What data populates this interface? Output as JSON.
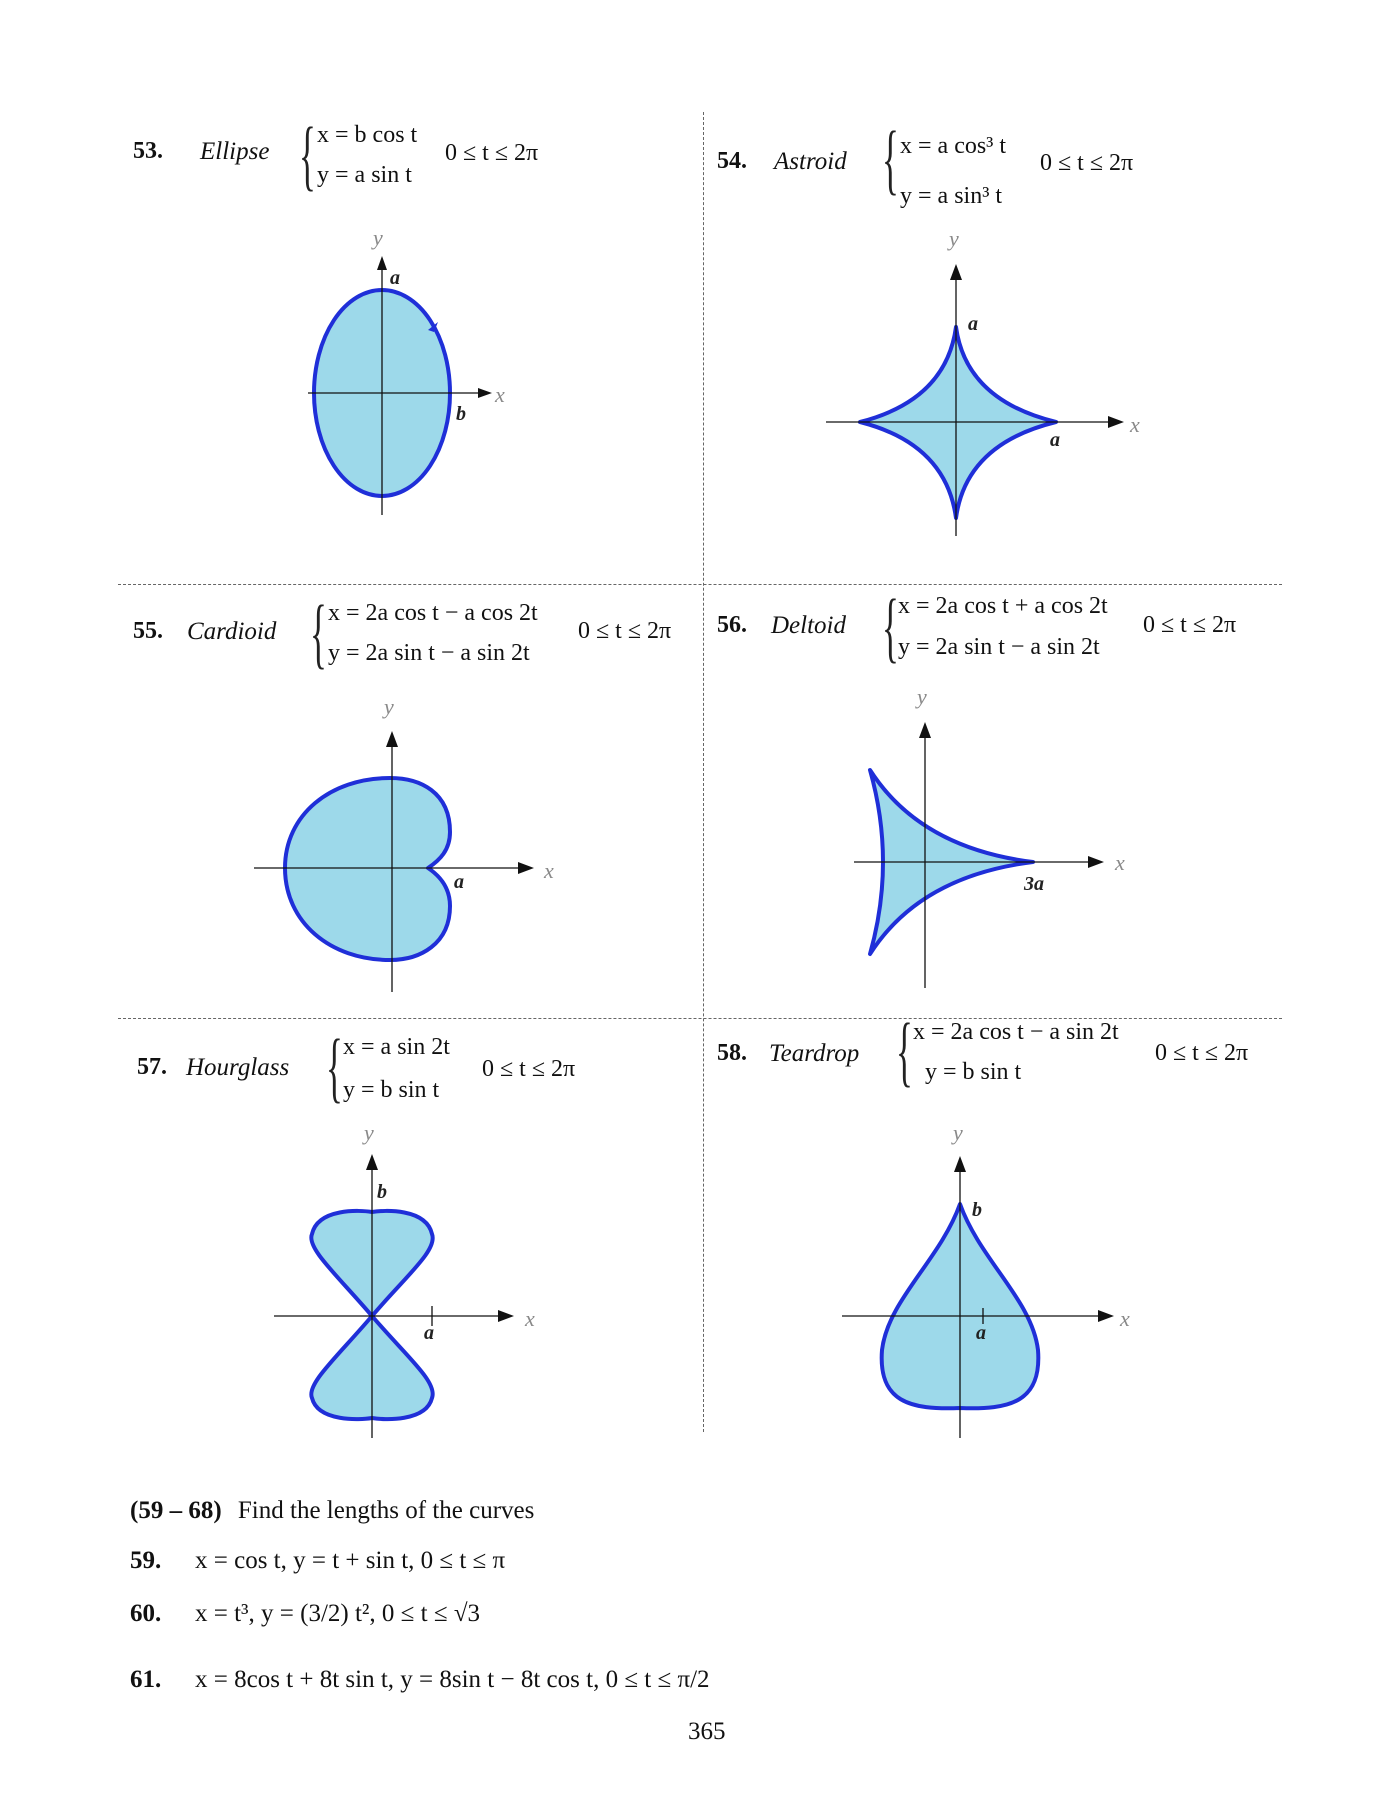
{
  "problems": [
    {
      "number": "53.",
      "name": "Ellipse",
      "eq1": "x = b cos t",
      "eq2": "y = a sin t",
      "range": "0 ≤ t ≤ 2π",
      "labels": {
        "y": "y",
        "x": "x",
        "p1": "a",
        "p2": "b"
      }
    },
    {
      "number": "54.",
      "name": "Astroid",
      "eq1": "x = a cos³ t",
      "eq2": "y = a sin³ t",
      "range": "0 ≤ t ≤ 2π",
      "labels": {
        "y": "y",
        "x": "x",
        "p1": "a",
        "p2": "a"
      }
    },
    {
      "number": "55.",
      "name": "Cardioid",
      "eq1": "x = 2a cos t − a cos 2t",
      "eq2": "y = 2a sin t − a sin 2t",
      "range": "0 ≤ t ≤ 2π",
      "labels": {
        "y": "y",
        "x": "x",
        "p1": "a"
      }
    },
    {
      "number": "56.",
      "name": "Deltoid",
      "eq1": "x = 2a cos t + a cos 2t",
      "eq2": "y = 2a sin t − a sin 2t",
      "range": "0 ≤ t ≤ 2π",
      "labels": {
        "y": "y",
        "x": "x",
        "p1": "3a"
      }
    },
    {
      "number": "57.",
      "name": "Hourglass",
      "eq1": "x = a sin 2t",
      "eq2": "y = b sin t",
      "range": "0 ≤ t ≤ 2π",
      "labels": {
        "y": "y",
        "x": "x",
        "p1": "b",
        "p2": "a"
      }
    },
    {
      "number": "58.",
      "name": "Teardrop",
      "eq1": "x = 2a cos t − a sin 2t",
      "eq2": "y = b sin t",
      "range": "0 ≤ t ≤ 2π",
      "labels": {
        "y": "y",
        "x": "x",
        "p1": "b",
        "p2": "a"
      }
    }
  ],
  "section": {
    "range": "(59 – 68)",
    "instruction": "Find the lengths of the curves"
  },
  "exercises": [
    {
      "number": "59.",
      "text": "x = cos t,   y = t + sin t,   0 ≤ t ≤ π"
    },
    {
      "number": "60.",
      "text": "x = t³,   y = (3/2) t²,   0 ≤ t ≤ √3"
    },
    {
      "number": "61.",
      "text": "x = 8cos t + 8t sin t,   y = 8sin t − 8t cos t,   0 ≤ t ≤ π/2"
    }
  ],
  "page_number": "365",
  "colors": {
    "fill": "#9dd9ea",
    "stroke": "#1f2fd8",
    "axis": "#111111"
  }
}
